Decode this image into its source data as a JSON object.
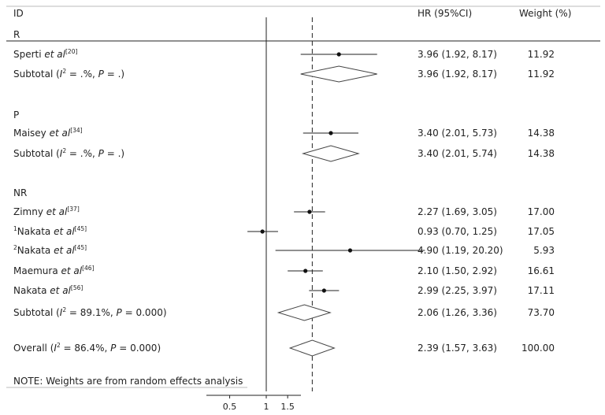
{
  "header": {
    "id": "ID",
    "hr": "HR (95%CI)",
    "weight": "Weight (%)"
  },
  "note": "NOTE: Weights are from random effects analysis",
  "chart_data": {
    "type": "forest",
    "x_scale": "log",
    "x_ticks": [
      "0.5",
      "1",
      "1.5"
    ],
    "null_line": 1,
    "overall_line": 2.39,
    "groups": [
      {
        "label": "R",
        "studies": [
          {
            "pre": "",
            "author": "Sperti",
            "ref": "[20]",
            "hr": 3.96,
            "lo": 1.92,
            "hi": 8.17,
            "ci_text": "3.96 (1.92, 8.17)",
            "weight": "11.92"
          }
        ],
        "subtotal": {
          "i2": ".%",
          "p": ".",
          "hr": 3.96,
          "lo": 1.92,
          "hi": 8.17,
          "ci_text": "3.96 (1.92, 8.17)",
          "weight": "11.92"
        }
      },
      {
        "label": "P",
        "studies": [
          {
            "pre": "",
            "author": "Maisey",
            "ref": "[34]",
            "hr": 3.4,
            "lo": 2.01,
            "hi": 5.73,
            "ci_text": "3.40 (2.01, 5.73)",
            "weight": "14.38"
          }
        ],
        "subtotal": {
          "i2": ".%",
          "p": ".",
          "hr": 3.4,
          "lo": 2.01,
          "hi": 5.74,
          "ci_text": "3.40 (2.01, 5.74)",
          "weight": "14.38"
        }
      },
      {
        "label": "NR",
        "studies": [
          {
            "pre": "",
            "author": "Zimny",
            "ref": "[37]",
            "hr": 2.27,
            "lo": 1.69,
            "hi": 3.05,
            "ci_text": "2.27 (1.69, 3.05)",
            "weight": "17.00"
          },
          {
            "pre": "1",
            "author": "Nakata",
            "ref": "[45]",
            "hr": 0.93,
            "lo": 0.7,
            "hi": 1.25,
            "ci_text": "0.93 (0.70, 1.25)",
            "weight": "17.05"
          },
          {
            "pre": "2",
            "author": "Nakata",
            "ref": "[45]",
            "hr": 4.9,
            "lo": 1.19,
            "hi": 20.2,
            "ci_text": "4.90 (1.19, 20.20)",
            "weight": "5.93"
          },
          {
            "pre": "",
            "author": "Maemura",
            "ref": "[46]",
            "hr": 2.1,
            "lo": 1.5,
            "hi": 2.92,
            "ci_text": "2.10 (1.50, 2.92)",
            "weight": "16.61"
          },
          {
            "pre": "",
            "author": "Nakata",
            "ref": "[56]",
            "hr": 2.99,
            "lo": 2.25,
            "hi": 3.97,
            "ci_text": "2.99 (2.25, 3.97)",
            "weight": "17.11"
          }
        ],
        "subtotal": {
          "i2": "89.1%",
          "p": "0.000",
          "hr": 2.06,
          "lo": 1.26,
          "hi": 3.36,
          "ci_text": "2.06 (1.26, 3.36)",
          "weight": "73.70"
        }
      }
    ],
    "overall": {
      "i2": "86.4%",
      "p": "0.000",
      "hr": 2.39,
      "lo": 1.57,
      "hi": 3.63,
      "ci_text": "2.39 (1.57, 3.63)",
      "weight": "100.00"
    }
  }
}
